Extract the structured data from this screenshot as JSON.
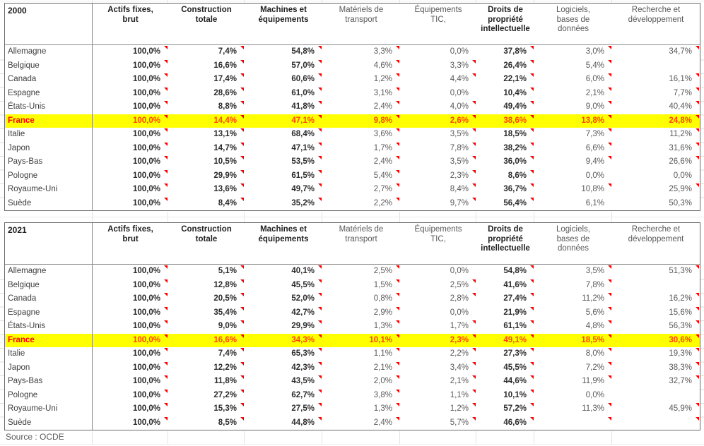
{
  "source_note": "Source : OCDE",
  "styles": {
    "highlight_background": "#FFFF00",
    "highlight_country_color": "#FF0000",
    "highlight_value_color": "#FF4500",
    "comment_marker_color": "#FF0000",
    "bold_value_columns": [
      0,
      1,
      2,
      5
    ]
  },
  "column_labels_wrapped": [
    "Actifs fixes,\nbrut",
    "Construction\ntotale",
    "Machines et\néquipements",
    "Matériels de\ntransport",
    "Équipements\nTIC,",
    "Droits de\npropriété\nintellectuelle",
    "Logiciels,\nbases de\ndonnées",
    "Recherche et\ndéveloppement"
  ],
  "chart_data": [
    {
      "type": "table",
      "title": "2000",
      "columns": [
        "Actifs fixes, brut",
        "Construction totale",
        "Machines et équipements",
        "Matériels de transport",
        "Équipements TIC,",
        "Droits de propriété intellectuelle",
        "Logiciels, bases de données",
        "Recherche et développement"
      ],
      "rows": [
        {
          "country": "Allemagne",
          "values": [
            "100,0%",
            "7,4%",
            "54,8%",
            "3,3%",
            "0,0%",
            "37,8%",
            "3,0%",
            "34,7%"
          ],
          "comment_markers": [
            1,
            1,
            1,
            1,
            0,
            1,
            1,
            1
          ],
          "highlight": false
        },
        {
          "country": "Belgique",
          "values": [
            "100,0%",
            "16,6%",
            "57,0%",
            "4,6%",
            "3,3%",
            "26,4%",
            "5,4%",
            ""
          ],
          "comment_markers": [
            1,
            1,
            1,
            1,
            1,
            1,
            1,
            0
          ],
          "highlight": false
        },
        {
          "country": "Canada",
          "values": [
            "100,0%",
            "17,4%",
            "60,6%",
            "1,2%",
            "4,4%",
            "22,1%",
            "6,0%",
            "16,1%"
          ],
          "comment_markers": [
            1,
            1,
            1,
            1,
            1,
            1,
            1,
            1
          ],
          "highlight": false
        },
        {
          "country": "Espagne",
          "values": [
            "100,0%",
            "28,6%",
            "61,0%",
            "3,1%",
            "0,0%",
            "10,4%",
            "2,1%",
            "7,7%"
          ],
          "comment_markers": [
            1,
            1,
            1,
            1,
            0,
            1,
            1,
            1
          ],
          "highlight": false
        },
        {
          "country": "États-Unis",
          "values": [
            "100,0%",
            "8,8%",
            "41,8%",
            "2,4%",
            "4,0%",
            "49,4%",
            "9,0%",
            "40,4%"
          ],
          "comment_markers": [
            1,
            1,
            1,
            1,
            1,
            1,
            1,
            1
          ],
          "highlight": false
        },
        {
          "country": "France",
          "values": [
            "100,0%",
            "14,4%",
            "47,1%",
            "9,8%",
            "2,6%",
            "38,6%",
            "13,8%",
            "24,8%"
          ],
          "comment_markers": [
            1,
            1,
            1,
            1,
            1,
            1,
            1,
            1
          ],
          "highlight": true
        },
        {
          "country": "Italie",
          "values": [
            "100,0%",
            "13,1%",
            "68,4%",
            "3,6%",
            "3,5%",
            "18,5%",
            "7,3%",
            "11,2%"
          ],
          "comment_markers": [
            1,
            1,
            1,
            1,
            1,
            1,
            1,
            1
          ],
          "highlight": false
        },
        {
          "country": "Japon",
          "values": [
            "100,0%",
            "14,7%",
            "47,1%",
            "1,7%",
            "7,8%",
            "38,2%",
            "6,6%",
            "31,6%"
          ],
          "comment_markers": [
            1,
            1,
            1,
            1,
            1,
            1,
            1,
            1
          ],
          "highlight": false
        },
        {
          "country": "Pays-Bas",
          "values": [
            "100,0%",
            "10,5%",
            "53,5%",
            "2,4%",
            "3,5%",
            "36,0%",
            "9,4%",
            "26,6%"
          ],
          "comment_markers": [
            1,
            1,
            1,
            1,
            1,
            1,
            1,
            1
          ],
          "highlight": false
        },
        {
          "country": "Pologne",
          "values": [
            "100,0%",
            "29,9%",
            "61,5%",
            "5,4%",
            "2,3%",
            "8,6%",
            "0,0%",
            "0,0%"
          ],
          "comment_markers": [
            1,
            1,
            1,
            1,
            1,
            1,
            0,
            0
          ],
          "highlight": false
        },
        {
          "country": "Royaume-Uni",
          "values": [
            "100,0%",
            "13,6%",
            "49,7%",
            "2,7%",
            "8,4%",
            "36,7%",
            "10,8%",
            "25,9%"
          ],
          "comment_markers": [
            1,
            1,
            1,
            1,
            1,
            1,
            1,
            1
          ],
          "highlight": false
        },
        {
          "country": "Suède",
          "values": [
            "100,0%",
            "8,4%",
            "35,2%",
            "2,2%",
            "9,7%",
            "56,4%",
            "6,1%",
            "50,3%"
          ],
          "comment_markers": [
            1,
            1,
            1,
            1,
            1,
            1,
            0,
            0
          ],
          "highlight": false
        }
      ]
    },
    {
      "type": "table",
      "title": "2021",
      "columns": [
        "Actifs fixes, brut",
        "Construction totale",
        "Machines et équipements",
        "Matériels de transport",
        "Équipements TIC,",
        "Droits de propriété intellectuelle",
        "Logiciels, bases de données",
        "Recherche et développement"
      ],
      "rows": [
        {
          "country": "Allemagne",
          "values": [
            "100,0%",
            "5,1%",
            "40,1%",
            "2,5%",
            "0,0%",
            "54,8%",
            "3,5%",
            "51,3%"
          ],
          "comment_markers": [
            1,
            1,
            1,
            1,
            0,
            1,
            1,
            1
          ],
          "highlight": false
        },
        {
          "country": "Belgique",
          "values": [
            "100,0%",
            "12,8%",
            "45,5%",
            "1,5%",
            "2,5%",
            "41,6%",
            "7,8%",
            ""
          ],
          "comment_markers": [
            1,
            1,
            1,
            1,
            1,
            1,
            1,
            0
          ],
          "highlight": false
        },
        {
          "country": "Canada",
          "values": [
            "100,0%",
            "20,5%",
            "52,0%",
            "0,8%",
            "2,8%",
            "27,4%",
            "11,2%",
            "16,2%"
          ],
          "comment_markers": [
            1,
            1,
            1,
            1,
            1,
            1,
            1,
            1
          ],
          "highlight": false
        },
        {
          "country": "Espagne",
          "values": [
            "100,0%",
            "35,4%",
            "42,7%",
            "2,9%",
            "0,0%",
            "21,9%",
            "5,6%",
            "15,6%"
          ],
          "comment_markers": [
            1,
            1,
            1,
            1,
            0,
            1,
            1,
            1
          ],
          "highlight": false
        },
        {
          "country": "États-Unis",
          "values": [
            "100,0%",
            "9,0%",
            "29,9%",
            "1,3%",
            "1,7%",
            "61,1%",
            "4,8%",
            "56,3%"
          ],
          "comment_markers": [
            1,
            1,
            1,
            1,
            1,
            1,
            1,
            1
          ],
          "highlight": false
        },
        {
          "country": "France",
          "values": [
            "100,0%",
            "16,6%",
            "34,3%",
            "10,1%",
            "2,3%",
            "49,1%",
            "18,5%",
            "30,6%"
          ],
          "comment_markers": [
            1,
            1,
            1,
            1,
            1,
            1,
            1,
            1
          ],
          "highlight": true
        },
        {
          "country": "Italie",
          "values": [
            "100,0%",
            "7,4%",
            "65,3%",
            "1,1%",
            "2,2%",
            "27,3%",
            "8,0%",
            "19,3%"
          ],
          "comment_markers": [
            1,
            1,
            1,
            1,
            1,
            1,
            1,
            1
          ],
          "highlight": false
        },
        {
          "country": "Japon",
          "values": [
            "100,0%",
            "12,2%",
            "42,3%",
            "2,1%",
            "3,4%",
            "45,5%",
            "7,2%",
            "38,3%"
          ],
          "comment_markers": [
            1,
            1,
            1,
            1,
            1,
            1,
            1,
            1
          ],
          "highlight": false
        },
        {
          "country": "Pays-Bas",
          "values": [
            "100,0%",
            "11,8%",
            "43,5%",
            "2,0%",
            "2,1%",
            "44,6%",
            "11,9%",
            "32,7%"
          ],
          "comment_markers": [
            1,
            1,
            1,
            1,
            1,
            1,
            1,
            1
          ],
          "highlight": false
        },
        {
          "country": "Pologne",
          "values": [
            "100,0%",
            "27,2%",
            "62,7%",
            "3,8%",
            "1,1%",
            "10,1%",
            "0,0%",
            ""
          ],
          "comment_markers": [
            1,
            1,
            1,
            1,
            1,
            1,
            0,
            0
          ],
          "highlight": false
        },
        {
          "country": "Royaume-Uni",
          "values": [
            "100,0%",
            "15,3%",
            "27,5%",
            "1,3%",
            "1,2%",
            "57,2%",
            "11,3%",
            "45,9%"
          ],
          "comment_markers": [
            1,
            1,
            1,
            1,
            1,
            1,
            1,
            1
          ],
          "highlight": false
        },
        {
          "country": "Suède",
          "values": [
            "100,0%",
            "8,5%",
            "44,8%",
            "2,4%",
            "5,7%",
            "46,6%",
            "",
            ""
          ],
          "comment_markers": [
            1,
            1,
            1,
            1,
            1,
            1,
            1,
            1
          ],
          "highlight": false
        }
      ]
    }
  ]
}
